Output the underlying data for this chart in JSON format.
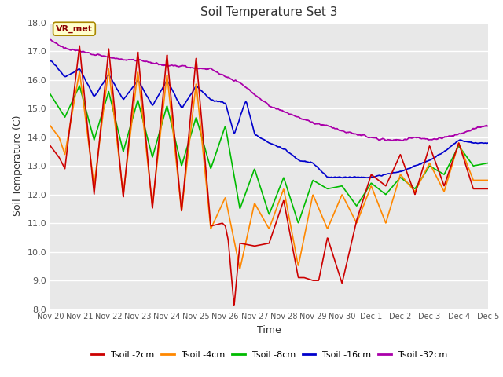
{
  "title": "Soil Temperature Set 3",
  "xlabel": "Time",
  "ylabel": "Soil Temperature (C)",
  "ylim": [
    8.0,
    18.0
  ],
  "yticks": [
    8.0,
    9.0,
    10.0,
    11.0,
    12.0,
    13.0,
    14.0,
    15.0,
    16.0,
    17.0,
    18.0
  ],
  "xtick_labels": [
    "Nov 20",
    "Nov 21",
    "Nov 22",
    "Nov 23",
    "Nov 24",
    "Nov 25",
    "Nov 26",
    "Nov 27",
    "Nov 28",
    "Nov 29",
    "Nov 30",
    "Dec 1",
    "Dec 2",
    "Dec 3",
    "Dec 4",
    "Dec 5"
  ],
  "series": [
    {
      "label": "Tsoil -2cm",
      "color": "#cc0000"
    },
    {
      "label": "Tsoil -4cm",
      "color": "#ff8800"
    },
    {
      "label": "Tsoil -8cm",
      "color": "#00bb00"
    },
    {
      "label": "Tsoil -16cm",
      "color": "#0000cc"
    },
    {
      "label": "Tsoil -32cm",
      "color": "#aa00aa"
    }
  ],
  "annotation_text": "VR_met",
  "plot_bg_color": "#e8e8e8",
  "linewidth": 1.2,
  "n_days": 15,
  "y_2cm_keys": [
    0,
    0.3,
    0.5,
    1.0,
    1.5,
    2.0,
    2.5,
    3.0,
    3.5,
    4.0,
    4.5,
    5.0,
    5.5,
    5.9,
    6.0,
    6.1,
    6.3,
    6.5,
    7.0,
    7.5,
    8.0,
    8.5,
    8.7,
    9.0,
    9.2,
    9.5,
    10.0,
    10.5,
    11.0,
    11.5,
    12.0,
    12.5,
    13.0,
    13.5,
    14.0,
    14.5,
    15.0
  ],
  "y_2cm_vals": [
    13.7,
    13.3,
    12.9,
    17.2,
    12.0,
    17.1,
    11.9,
    17.0,
    11.5,
    16.9,
    11.4,
    16.8,
    10.9,
    11.0,
    10.9,
    10.4,
    8.1,
    10.3,
    10.2,
    10.3,
    11.8,
    9.1,
    9.1,
    9.0,
    9.0,
    10.5,
    8.9,
    11.1,
    12.7,
    12.3,
    13.4,
    12.0,
    13.7,
    12.3,
    13.8,
    12.2,
    12.2
  ],
  "y_4cm_keys": [
    0,
    0.3,
    0.5,
    1.0,
    1.5,
    2.0,
    2.5,
    3.0,
    3.5,
    4.0,
    4.5,
    5.0,
    5.5,
    6.0,
    6.5,
    7.0,
    7.5,
    8.0,
    8.5,
    9.0,
    9.5,
    10.0,
    10.5,
    11.0,
    11.5,
    12.0,
    12.5,
    13.0,
    13.5,
    14.0,
    14.5,
    15.0
  ],
  "y_4cm_vals": [
    14.4,
    14.0,
    13.4,
    16.3,
    12.3,
    16.4,
    12.0,
    16.3,
    11.6,
    16.2,
    11.4,
    15.9,
    10.8,
    11.9,
    9.4,
    11.7,
    10.8,
    12.2,
    9.5,
    12.0,
    10.8,
    12.0,
    11.0,
    12.3,
    11.0,
    12.7,
    12.1,
    13.1,
    12.1,
    13.8,
    12.5,
    12.5
  ],
  "y_8cm_keys": [
    0,
    0.5,
    1.0,
    1.5,
    2.0,
    2.5,
    3.0,
    3.5,
    4.0,
    4.5,
    5.0,
    5.5,
    6.0,
    6.5,
    7.0,
    7.5,
    8.0,
    8.5,
    9.0,
    9.5,
    10.0,
    10.5,
    11.0,
    11.5,
    12.0,
    12.5,
    13.0,
    13.5,
    14.0,
    14.5,
    15.0
  ],
  "y_8cm_vals": [
    15.5,
    14.7,
    15.8,
    13.9,
    15.6,
    13.5,
    15.3,
    13.3,
    15.1,
    13.0,
    14.7,
    12.9,
    14.4,
    11.5,
    12.9,
    11.3,
    12.6,
    11.0,
    12.5,
    12.2,
    12.3,
    11.6,
    12.4,
    12.0,
    12.6,
    12.2,
    13.0,
    12.7,
    13.7,
    13.0,
    13.1
  ],
  "y_16cm_keys": [
    0,
    0.5,
    1.0,
    1.5,
    2.0,
    2.5,
    3.0,
    3.5,
    4.0,
    4.5,
    5.0,
    5.5,
    6.0,
    6.3,
    6.7,
    7.0,
    7.5,
    8.0,
    8.5,
    9.0,
    9.5,
    10.0,
    10.5,
    11.0,
    11.5,
    12.0,
    12.5,
    13.0,
    13.5,
    14.0,
    14.5,
    15.0
  ],
  "y_16cm_vals": [
    16.7,
    16.1,
    16.4,
    15.4,
    16.2,
    15.3,
    16.0,
    15.1,
    16.0,
    15.0,
    15.8,
    15.3,
    15.2,
    14.1,
    15.3,
    14.1,
    13.8,
    13.6,
    13.2,
    13.1,
    12.6,
    12.6,
    12.6,
    12.6,
    12.7,
    12.8,
    13.0,
    13.2,
    13.5,
    13.9,
    13.8,
    13.8
  ],
  "y_32cm_keys": [
    0,
    0.5,
    1.0,
    1.5,
    2.0,
    2.5,
    3.0,
    3.5,
    4.0,
    4.5,
    5.0,
    5.5,
    6.0,
    6.5,
    7.0,
    7.5,
    8.0,
    8.5,
    9.0,
    9.5,
    10.0,
    10.5,
    11.0,
    11.5,
    12.0,
    12.5,
    13.0,
    13.5,
    14.0,
    14.5,
    15.0
  ],
  "y_32cm_vals": [
    17.4,
    17.1,
    17.0,
    16.9,
    16.8,
    16.7,
    16.7,
    16.6,
    16.5,
    16.5,
    16.4,
    16.4,
    16.1,
    15.9,
    15.5,
    15.1,
    14.9,
    14.7,
    14.5,
    14.4,
    14.2,
    14.1,
    14.0,
    13.9,
    13.9,
    14.0,
    13.9,
    14.0,
    14.1,
    14.3,
    14.4
  ]
}
